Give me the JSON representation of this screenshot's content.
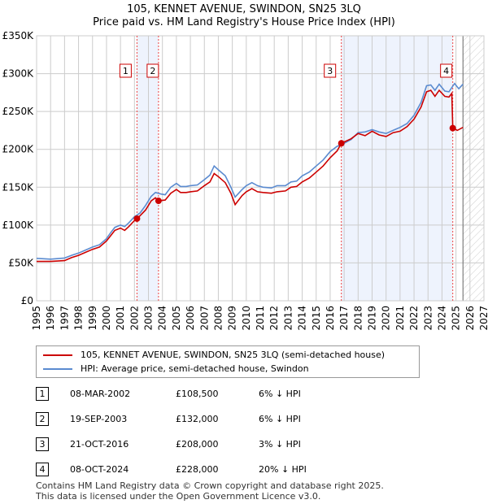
{
  "title": "105, KENNET AVENUE, SWINDON, SN25 3LQ",
  "subtitle": "Price paid vs. HM Land Registry's House Price Index (HPI)",
  "chart_data": {
    "type": "line",
    "title": "105, KENNET AVENUE, SWINDON, SN25 3LQ",
    "subtitle": "Price paid vs. HM Land Registry's House Price Index (HPI)",
    "xlim": [
      1995,
      2027
    ],
    "ylim": [
      0,
      350000
    ],
    "x_ticks": [
      "1995",
      "1996",
      "1997",
      "1998",
      "1999",
      "2000",
      "2001",
      "2002",
      "2003",
      "2004",
      "2005",
      "2006",
      "2007",
      "2008",
      "2009",
      "2010",
      "2011",
      "2012",
      "2013",
      "2014",
      "2015",
      "2016",
      "2017",
      "2018",
      "2019",
      "2020",
      "2021",
      "2022",
      "2023",
      "2024",
      "2025",
      "2026",
      "2027"
    ],
    "y_ticks": [
      {
        "v": 0,
        "l": "£0"
      },
      {
        "v": 50000,
        "l": "£50K"
      },
      {
        "v": 100000,
        "l": "£100K"
      },
      {
        "v": 150000,
        "l": "£150K"
      },
      {
        "v": 200000,
        "l": "£200K"
      },
      {
        "v": 250000,
        "l": "£250K"
      },
      {
        "v": 300000,
        "l": "£300K"
      },
      {
        "v": 350000,
        "l": "£350K"
      }
    ],
    "grid": true,
    "colors": {
      "property": "#cc0000",
      "hpi": "#5b8bd0",
      "shade": "#eef3fd"
    },
    "series": [
      {
        "name": "HPI",
        "points": [
          [
            1995,
            56
          ],
          [
            1996,
            55
          ],
          [
            1997,
            56.5
          ],
          [
            1997.5,
            60
          ],
          [
            1998,
            63
          ],
          [
            1998.5,
            67
          ],
          [
            1999,
            71
          ],
          [
            1999.5,
            74
          ],
          [
            2000,
            82
          ],
          [
            2000.3,
            90
          ],
          [
            2000.6,
            97
          ],
          [
            2001,
            100
          ],
          [
            2001.3,
            98
          ],
          [
            2001.6,
            103
          ],
          [
            2002,
            111
          ],
          [
            2002.4,
            116
          ],
          [
            2002.8,
            126
          ],
          [
            2003.2,
            138
          ],
          [
            2003.5,
            143
          ],
          [
            2003.9,
            141
          ],
          [
            2004.2,
            140
          ],
          [
            2004.6,
            150
          ],
          [
            2005,
            155
          ],
          [
            2005.3,
            151
          ],
          [
            2005.7,
            151
          ],
          [
            2006,
            152
          ],
          [
            2006.5,
            153
          ],
          [
            2007,
            160
          ],
          [
            2007.4,
            166
          ],
          [
            2007.7,
            178
          ],
          [
            2008,
            173
          ],
          [
            2008.5,
            165
          ],
          [
            2008.9,
            150
          ],
          [
            2009.2,
            137
          ],
          [
            2009.7,
            147
          ],
          [
            2010,
            152
          ],
          [
            2010.4,
            156
          ],
          [
            2010.8,
            152
          ],
          [
            2011.2,
            150
          ],
          [
            2011.8,
            149
          ],
          [
            2012.2,
            152
          ],
          [
            2012.8,
            152
          ],
          [
            2013.2,
            157
          ],
          [
            2013.6,
            158
          ],
          [
            2014,
            165
          ],
          [
            2014.5,
            170
          ],
          [
            2015,
            178
          ],
          [
            2015.5,
            186
          ],
          [
            2016,
            197
          ],
          [
            2016.5,
            204
          ],
          [
            2017,
            208
          ],
          [
            2017.5,
            213
          ],
          [
            2018,
            222
          ],
          [
            2018.5,
            223
          ],
          [
            2019,
            226
          ],
          [
            2019.5,
            223
          ],
          [
            2020,
            221
          ],
          [
            2020.5,
            225
          ],
          [
            2021,
            229
          ],
          [
            2021.5,
            234
          ],
          [
            2022,
            245
          ],
          [
            2022.5,
            262
          ],
          [
            2022.9,
            284
          ],
          [
            2023.2,
            285
          ],
          [
            2023.5,
            278
          ],
          [
            2023.8,
            286
          ],
          [
            2024.2,
            277
          ],
          [
            2024.5,
            276
          ],
          [
            2024.9,
            287
          ],
          [
            2025.2,
            280
          ],
          [
            2025.5,
            286
          ]
        ]
      },
      {
        "name": "Property",
        "points": [
          [
            1995,
            52
          ],
          [
            1996,
            52
          ],
          [
            1997,
            53
          ],
          [
            1997.5,
            57
          ],
          [
            1998,
            60
          ],
          [
            1998.5,
            64
          ],
          [
            1999,
            68
          ],
          [
            1999.5,
            71
          ],
          [
            2000,
            79
          ],
          [
            2000.3,
            86
          ],
          [
            2000.6,
            93
          ],
          [
            2001,
            96
          ],
          [
            2001.3,
            93
          ],
          [
            2001.6,
            98
          ],
          [
            2002,
            106
          ],
          [
            2002.2,
            108.5
          ],
          [
            2002.8,
            120
          ],
          [
            2003.2,
            132
          ],
          [
            2003.5,
            136
          ],
          [
            2003.7,
            132
          ],
          [
            2004.2,
            133
          ],
          [
            2004.6,
            142
          ],
          [
            2005,
            147
          ],
          [
            2005.3,
            143
          ],
          [
            2005.7,
            143
          ],
          [
            2006,
            144
          ],
          [
            2006.5,
            145
          ],
          [
            2007,
            152
          ],
          [
            2007.4,
            157
          ],
          [
            2007.7,
            168
          ],
          [
            2008,
            164
          ],
          [
            2008.5,
            156
          ],
          [
            2008.9,
            142
          ],
          [
            2009.2,
            127
          ],
          [
            2009.7,
            139
          ],
          [
            2010,
            144
          ],
          [
            2010.4,
            148
          ],
          [
            2010.8,
            144
          ],
          [
            2011.2,
            143
          ],
          [
            2011.8,
            142
          ],
          [
            2012.2,
            144
          ],
          [
            2012.8,
            145
          ],
          [
            2013.2,
            150
          ],
          [
            2013.6,
            151
          ],
          [
            2014,
            157
          ],
          [
            2014.5,
            162
          ],
          [
            2015,
            170
          ],
          [
            2015.5,
            178
          ],
          [
            2016,
            189
          ],
          [
            2016.5,
            198
          ],
          [
            2016.8,
            208
          ],
          [
            2017.5,
            214
          ],
          [
            2018,
            221
          ],
          [
            2018.5,
            218
          ],
          [
            2019,
            224
          ],
          [
            2019.5,
            219
          ],
          [
            2020,
            217
          ],
          [
            2020.5,
            222
          ],
          [
            2021,
            224
          ],
          [
            2021.5,
            230
          ],
          [
            2022,
            240
          ],
          [
            2022.5,
            256
          ],
          [
            2022.9,
            276
          ],
          [
            2023.2,
            278
          ],
          [
            2023.5,
            270
          ],
          [
            2023.8,
            278
          ],
          [
            2024.2,
            270
          ],
          [
            2024.5,
            269
          ],
          [
            2024.7,
            274
          ],
          [
            2024.77,
            228
          ],
          [
            2025.1,
            225
          ],
          [
            2025.5,
            229
          ]
        ]
      }
    ],
    "sales": [
      {
        "n": "1",
        "x": 2002.18,
        "y": 108.5
      },
      {
        "n": "2",
        "x": 2003.72,
        "y": 132
      },
      {
        "n": "3",
        "x": 2016.8,
        "y": 208
      },
      {
        "n": "4",
        "x": 2024.77,
        "y": 228
      }
    ],
    "shaded": [
      [
        2002.18,
        2003.72
      ],
      [
        2016.8,
        2024.77
      ]
    ],
    "forecast_from": 2025.5
  },
  "legend": {
    "property": "105, KENNET AVENUE, SWINDON, SN25 3LQ (semi-detached house)",
    "hpi": "HPI: Average price, semi-detached house, Swindon"
  },
  "table": [
    {
      "n": "1",
      "date": "08-MAR-2002",
      "price": "£108,500",
      "diff": "6% ↓ HPI"
    },
    {
      "n": "2",
      "date": "19-SEP-2003",
      "price": "£132,000",
      "diff": "6% ↓ HPI"
    },
    {
      "n": "3",
      "date": "21-OCT-2016",
      "price": "£208,000",
      "diff": "3% ↓ HPI"
    },
    {
      "n": "4",
      "date": "08-OCT-2024",
      "price": "£228,000",
      "diff": "20% ↓ HPI"
    }
  ],
  "footer": {
    "line1": "Contains HM Land Registry data © Crown copyright and database right 2025.",
    "line2": "This data is licensed under the Open Government Licence v3.0."
  }
}
